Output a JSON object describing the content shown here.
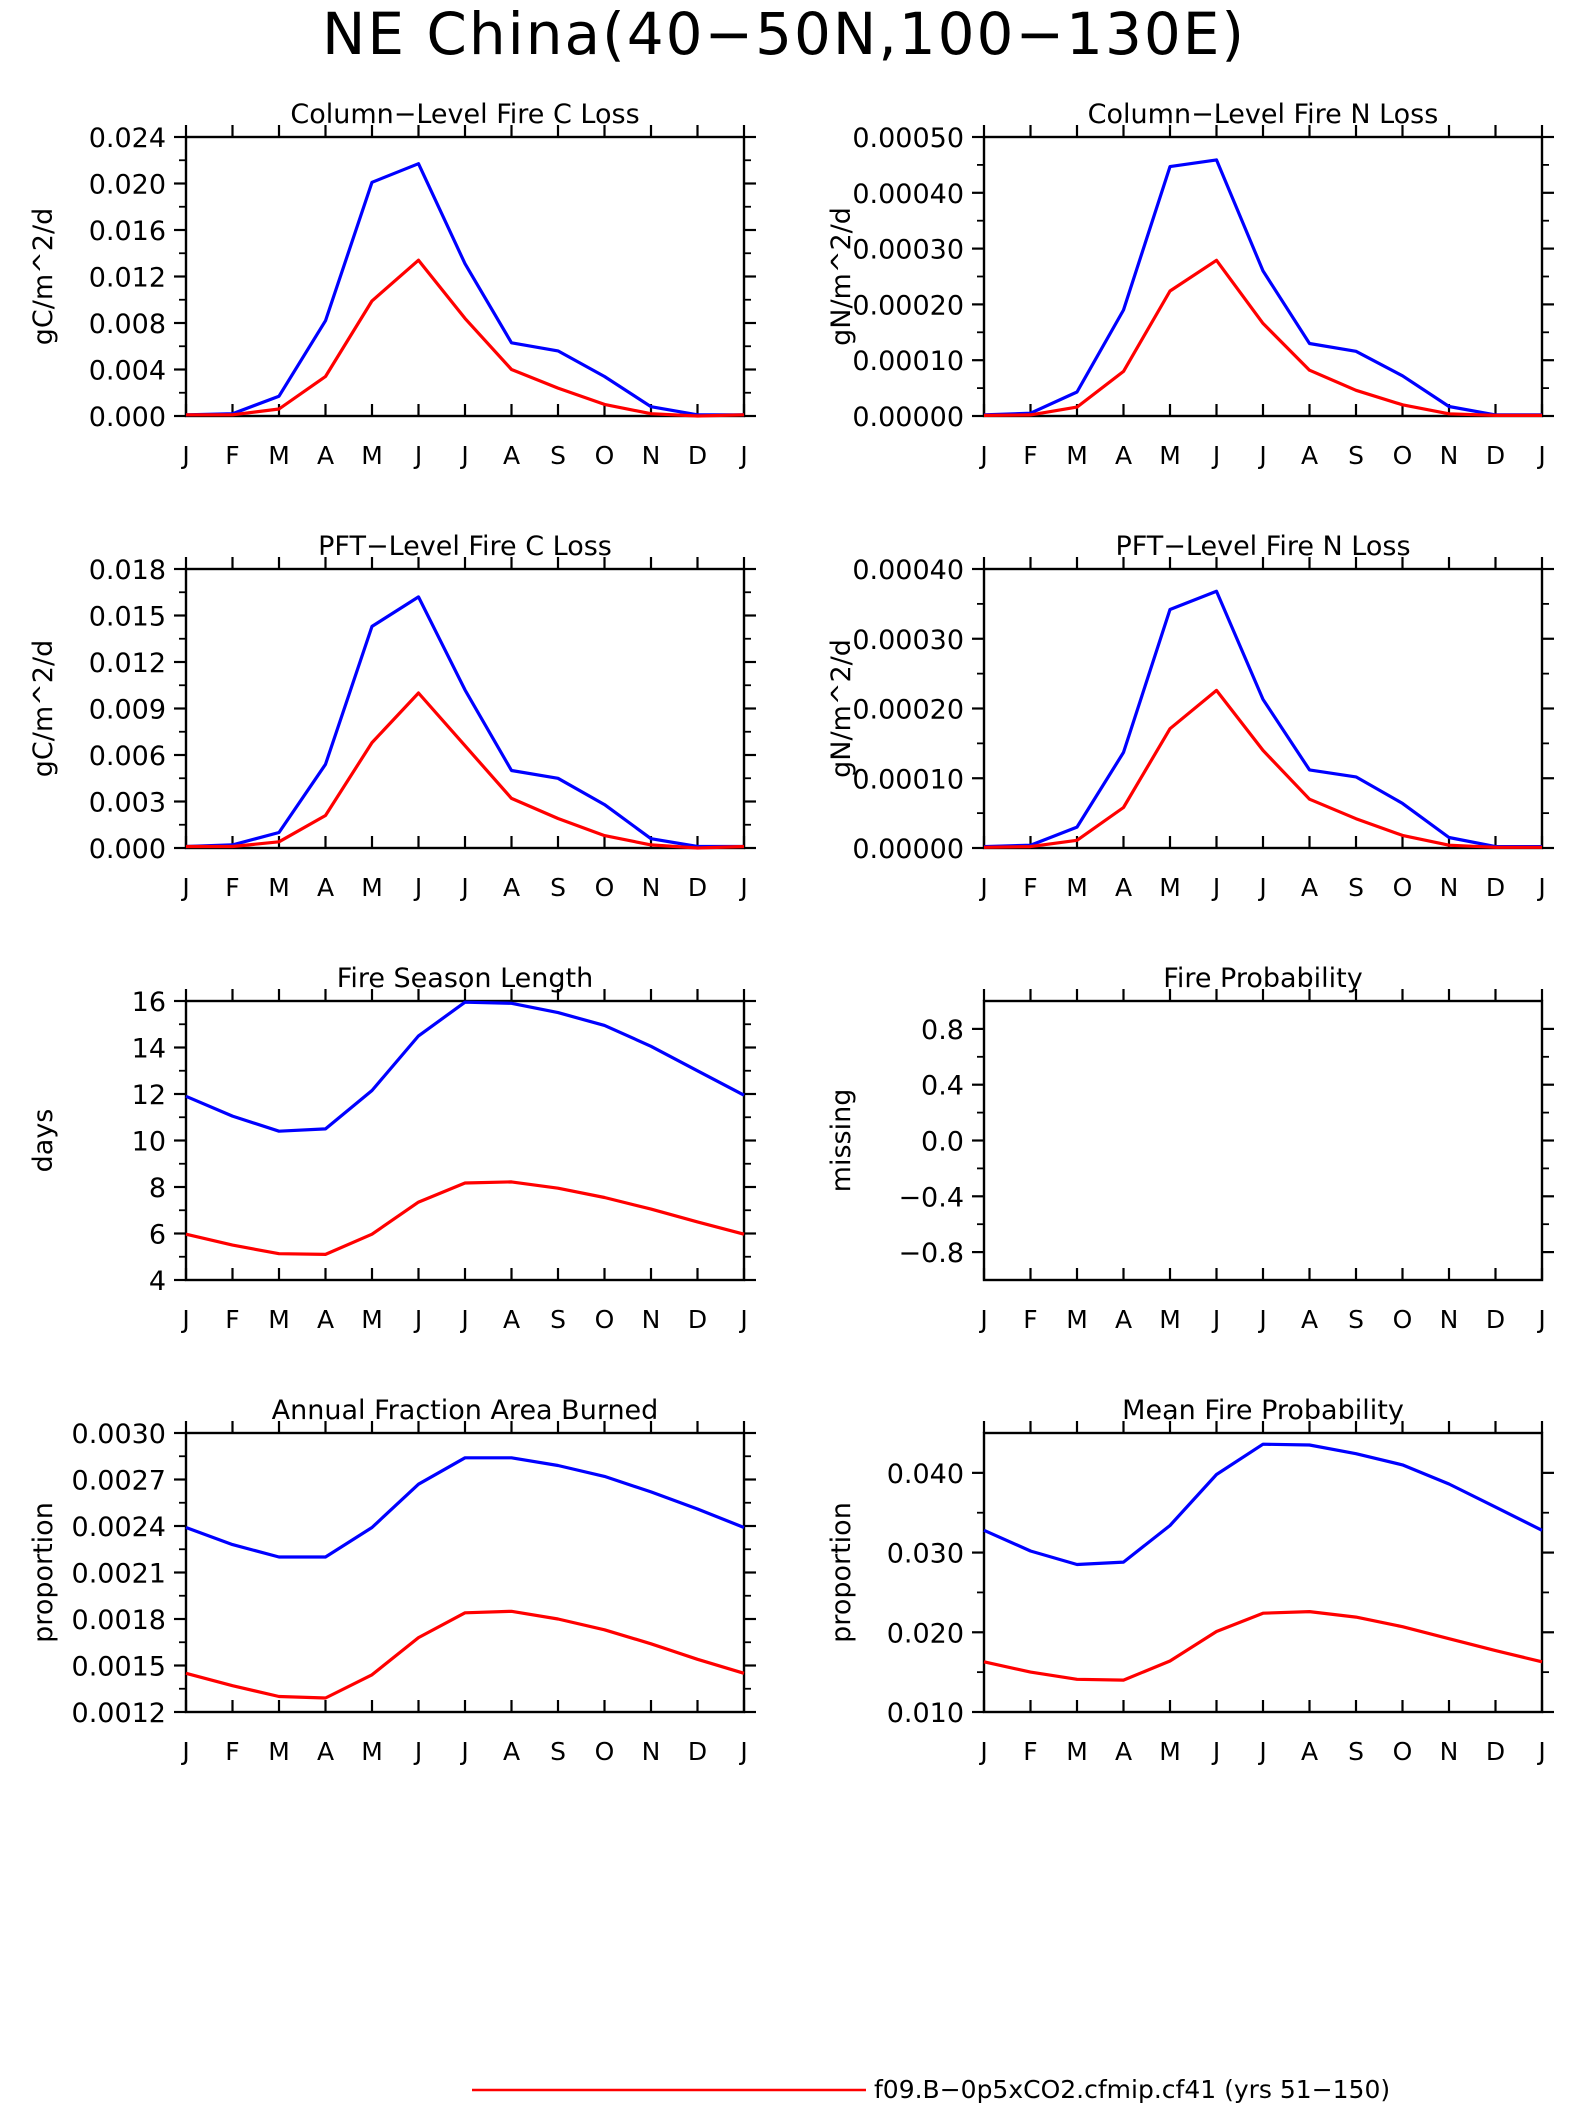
{
  "figure_title": "NE China(40−50N,100−130E)",
  "legend": [
    {
      "color": "#ff0000",
      "label": "f09.B−0p5xCO2.cfmip.cf41 (yrs 51−150)"
    }
  ],
  "chart_data": [
    {
      "type": "line",
      "title": "Column−Level Fire C Loss",
      "ylabel": "gC/m^2/d",
      "ylim": [
        0,
        0.024
      ],
      "yticks": [
        0,
        0.004,
        0.008,
        0.012,
        0.016,
        0.02,
        0.024
      ],
      "ytick_labels": [
        "0.000",
        "0.004",
        "0.008",
        "0.012",
        "0.016",
        "0.020",
        "0.024"
      ],
      "x_labels": [
        "J",
        "F",
        "M",
        "A",
        "M",
        "J",
        "J",
        "A",
        "S",
        "O",
        "N",
        "D",
        "J"
      ],
      "series": [
        {
          "color": "#0000ff",
          "values": [
            0.0001,
            0.0002,
            0.0017,
            0.0082,
            0.0201,
            0.0217,
            0.0131,
            0.0063,
            0.0056,
            0.0034,
            0.0008,
            0.0001,
            0.0001
          ]
        },
        {
          "color": "#ff0000",
          "values": [
            0.0001,
            0.0001,
            0.0006,
            0.0034,
            0.0099,
            0.0134,
            0.0084,
            0.004,
            0.0024,
            0.001,
            0.0002,
            0.0,
            0.0001
          ]
        }
      ]
    },
    {
      "type": "line",
      "title": "Column−Level Fire N Loss",
      "ylabel": "gN/m^2/d",
      "ylim": [
        0,
        0.0005
      ],
      "yticks": [
        0,
        0.0001,
        0.0002,
        0.0003,
        0.0004,
        0.0005
      ],
      "ytick_labels": [
        "0.00000",
        "0.00010",
        "0.00020",
        "0.00030",
        "0.00040",
        "0.00050"
      ],
      "x_labels": [
        "J",
        "F",
        "M",
        "A",
        "M",
        "J",
        "J",
        "A",
        "S",
        "O",
        "N",
        "D",
        "J"
      ],
      "series": [
        {
          "color": "#0000ff",
          "values": [
            2e-06,
            5e-06,
            4.3e-05,
            0.00019,
            0.000447,
            0.000459,
            0.00026,
            0.00013,
            0.000116,
            7.2e-05,
            1.7e-05,
            2e-06,
            2e-06
          ]
        },
        {
          "color": "#ff0000",
          "values": [
            1e-06,
            2e-06,
            1.6e-05,
            8e-05,
            0.000224,
            0.000279,
            0.000166,
            8.2e-05,
            4.6e-05,
            2e-05,
            4e-06,
            1e-06,
            1e-06
          ]
        }
      ]
    },
    {
      "type": "line",
      "title": "PFT−Level Fire C Loss",
      "ylabel": "gC/m^2/d",
      "ylim": [
        0,
        0.018
      ],
      "yticks": [
        0,
        0.003,
        0.006,
        0.009,
        0.012,
        0.015,
        0.018
      ],
      "ytick_labels": [
        "0.000",
        "0.003",
        "0.006",
        "0.009",
        "0.012",
        "0.015",
        "0.018"
      ],
      "x_labels": [
        "J",
        "F",
        "M",
        "A",
        "M",
        "J",
        "J",
        "A",
        "S",
        "O",
        "N",
        "D",
        "J"
      ],
      "series": [
        {
          "color": "#0000ff",
          "values": [
            0.0001,
            0.0002,
            0.001,
            0.0054,
            0.0143,
            0.0162,
            0.0102,
            0.005,
            0.0045,
            0.0028,
            0.0006,
            0.0001,
            0.0001
          ]
        },
        {
          "color": "#ff0000",
          "values": [
            0.0001,
            0.0001,
            0.0004,
            0.0021,
            0.0068,
            0.01,
            0.0066,
            0.0032,
            0.0019,
            0.0008,
            0.0002,
            0.0,
            0.0001
          ]
        }
      ]
    },
    {
      "type": "line",
      "title": "PFT−Level Fire N Loss",
      "ylabel": "gN/m^2/d",
      "ylim": [
        0,
        0.0004
      ],
      "yticks": [
        0,
        0.0001,
        0.0002,
        0.0003,
        0.0004
      ],
      "ytick_labels": [
        "0.00000",
        "0.00010",
        "0.00020",
        "0.00030",
        "0.00040"
      ],
      "x_labels": [
        "J",
        "F",
        "M",
        "A",
        "M",
        "J",
        "J",
        "A",
        "S",
        "O",
        "N",
        "D",
        "J"
      ],
      "series": [
        {
          "color": "#0000ff",
          "values": [
            2e-06,
            4e-06,
            3e-05,
            0.000137,
            0.000342,
            0.000368,
            0.000213,
            0.000112,
            0.000102,
            6.4e-05,
            1.5e-05,
            2e-06,
            2e-06
          ]
        },
        {
          "color": "#ff0000",
          "values": [
            1e-06,
            2e-06,
            1.1e-05,
            5.8e-05,
            0.000171,
            0.000226,
            0.00014,
            7e-05,
            4.2e-05,
            1.8e-05,
            4e-06,
            1e-06,
            1e-06
          ]
        }
      ]
    },
    {
      "type": "line",
      "title": "Fire Season Length",
      "ylabel": "days",
      "ylim": [
        4,
        16
      ],
      "yticks": [
        4,
        6,
        8,
        10,
        12,
        14,
        16
      ],
      "ytick_labels": [
        "4",
        "6",
        "8",
        "10",
        "12",
        "14",
        "16"
      ],
      "x_labels": [
        "J",
        "F",
        "M",
        "A",
        "M",
        "J",
        "J",
        "A",
        "S",
        "O",
        "N",
        "D",
        "J"
      ],
      "series": [
        {
          "color": "#0000ff",
          "values": [
            11.9,
            11.05,
            10.4,
            10.5,
            12.15,
            14.5,
            15.95,
            15.9,
            15.5,
            14.95,
            14.05,
            13.0,
            11.95
          ]
        },
        {
          "color": "#ff0000",
          "values": [
            5.97,
            5.5,
            5.13,
            5.1,
            5.97,
            7.35,
            8.17,
            8.22,
            7.95,
            7.55,
            7.05,
            6.5,
            5.97
          ]
        }
      ]
    },
    {
      "type": "line",
      "title": "Fire Probability",
      "ylabel": "missing",
      "ylim": [
        -1,
        1
      ],
      "yticks": [
        -0.8,
        -0.4,
        0,
        0.4,
        0.8
      ],
      "ytick_labels": [
        "−0.8",
        "−0.4",
        "0.0",
        "0.4",
        "0.8"
      ],
      "x_labels": [
        "J",
        "F",
        "M",
        "A",
        "M",
        "J",
        "J",
        "A",
        "S",
        "O",
        "N",
        "D",
        "J"
      ],
      "series": []
    },
    {
      "type": "line",
      "title": "Annual Fraction Area Burned",
      "ylabel": "proportion",
      "ylim": [
        0.0012,
        0.003
      ],
      "yticks": [
        0.0012,
        0.0015,
        0.0018,
        0.0021,
        0.0024,
        0.0027,
        0.003
      ],
      "ytick_labels": [
        "0.0012",
        "0.0015",
        "0.0018",
        "0.0021",
        "0.0024",
        "0.0027",
        "0.0030"
      ],
      "x_labels": [
        "J",
        "F",
        "M",
        "A",
        "M",
        "J",
        "J",
        "A",
        "S",
        "O",
        "N",
        "D",
        "J"
      ],
      "series": [
        {
          "color": "#0000ff",
          "values": [
            0.00239,
            0.00228,
            0.0022,
            0.0022,
            0.00239,
            0.00267,
            0.00284,
            0.00284,
            0.00279,
            0.00272,
            0.00262,
            0.00251,
            0.00239
          ]
        },
        {
          "color": "#ff0000",
          "values": [
            0.00145,
            0.00137,
            0.0013,
            0.00129,
            0.00144,
            0.00168,
            0.00184,
            0.00185,
            0.0018,
            0.00173,
            0.00164,
            0.00154,
            0.00145
          ]
        }
      ]
    },
    {
      "type": "line",
      "title": "Mean Fire Probability",
      "ylabel": "proportion",
      "ylim": [
        0.01,
        0.045
      ],
      "yticks": [
        0.01,
        0.02,
        0.03,
        0.04
      ],
      "ytick_labels": [
        "0.010",
        "0.020",
        "0.030",
        "0.040"
      ],
      "x_labels": [
        "J",
        "F",
        "M",
        "A",
        "M",
        "J",
        "J",
        "A",
        "S",
        "O",
        "N",
        "D",
        "J"
      ],
      "series": [
        {
          "color": "#0000ff",
          "values": [
            0.0328,
            0.0302,
            0.0285,
            0.0288,
            0.0334,
            0.0398,
            0.0436,
            0.0435,
            0.0424,
            0.041,
            0.0386,
            0.0357,
            0.0328
          ]
        },
        {
          "color": "#ff0000",
          "values": [
            0.0163,
            0.015,
            0.0141,
            0.014,
            0.0164,
            0.0201,
            0.0224,
            0.0226,
            0.0219,
            0.0207,
            0.0192,
            0.0177,
            0.0163
          ]
        }
      ]
    }
  ]
}
